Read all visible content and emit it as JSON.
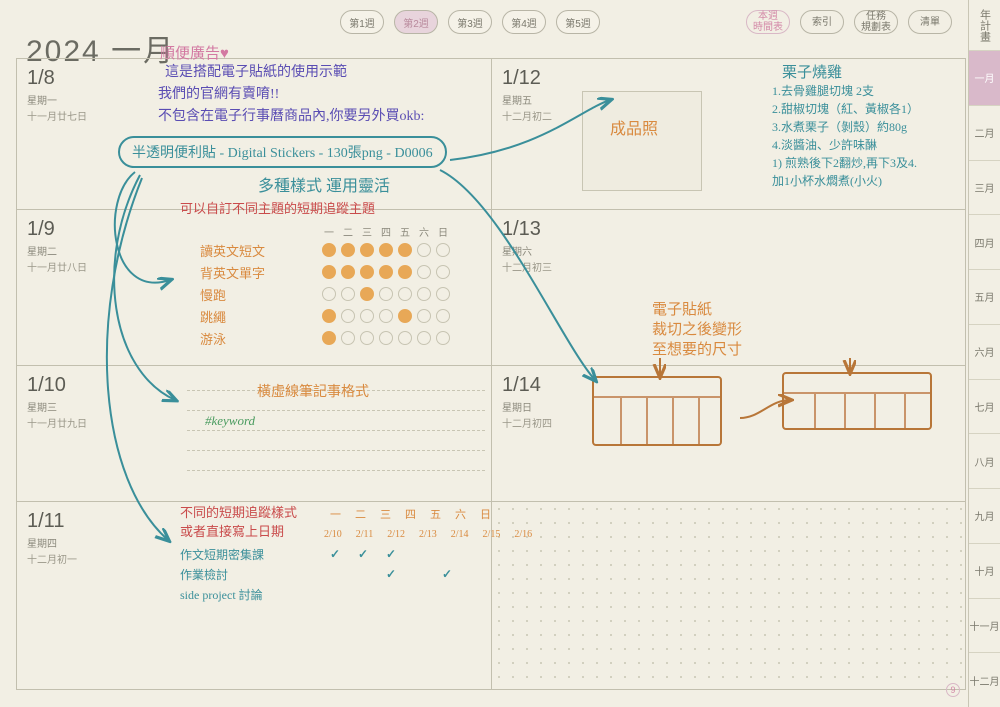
{
  "year_title": "2024 一月",
  "week_tabs": [
    "第1週",
    "第2週",
    "第3週",
    "第4週",
    "第5週"
  ],
  "week_active_index": 1,
  "right_nav": [
    {
      "label": "本週\n時間表",
      "pink": true
    },
    {
      "label": "索引",
      "pink": false
    },
    {
      "label": "任務\n規劃表",
      "pink": false
    },
    {
      "label": "清單",
      "pink": false
    }
  ],
  "month_strip_header": "年計畫",
  "months": [
    "一月",
    "二月",
    "三月",
    "四月",
    "五月",
    "六月",
    "七月",
    "八月",
    "九月",
    "十月",
    "十一月",
    "十二月"
  ],
  "month_active_index": 0,
  "days": {
    "d18": {
      "date": "1/8",
      "weekday": "星期一",
      "lunar": "十一月廿七日"
    },
    "d19": {
      "date": "1/9",
      "weekday": "星期二",
      "lunar": "十一月廿八日"
    },
    "d110": {
      "date": "1/10",
      "weekday": "星期三",
      "lunar": "十一月廿九日"
    },
    "d111": {
      "date": "1/11",
      "weekday": "星期四",
      "lunar": "十二月初一"
    },
    "d112": {
      "date": "1/12",
      "weekday": "星期五",
      "lunar": "十二月初二"
    },
    "d113": {
      "date": "1/13",
      "weekday": "星期六",
      "lunar": "十二月初三"
    },
    "d114": {
      "date": "1/14",
      "weekday": "星期日",
      "lunar": "十二月初四"
    }
  },
  "annotations": {
    "ad_label": "順便廣告♥",
    "intro_lines": [
      "這是搭配電子貼紙的使用示範",
      "我們的官網有賣唷!!",
      "不包含在電子行事曆商品內,你要另外買okb:"
    ],
    "sticker_text": "半透明便利貼 - Digital Stickers - 130張png - D0006",
    "flex_caption": "多種樣式 運用靈活",
    "custom_topic": "可以自訂不同主題的短期追蹤主題",
    "dashed_style": "橫虛線筆記事格式",
    "keyword": "#keyword",
    "variant_heading": "不同的短期追蹤樣式",
    "variant_sub": "或者直接寫上日期",
    "result_photo": "成品照",
    "recipe_title": "栗子燒雞",
    "recipe_lines": [
      "1.去骨雞腿切塊 2支",
      "2.甜椒切塊（紅、黃椒各1）",
      "3.水煮栗子（剝殼）約80g",
      "4.淡醬油、少許味醂",
      "1) 煎熟後下2翻炒,再下3及4.",
      "加1小杯水燜煮(小火)"
    ],
    "sticker_note": [
      "電子貼紙",
      "裁切之後變形",
      "至想要的尺寸"
    ]
  },
  "tracker9": {
    "headers": [
      "一",
      "二",
      "三",
      "四",
      "五",
      "六",
      "日"
    ],
    "rows": [
      {
        "label": "讀英文短文",
        "cells": [
          1,
          1,
          1,
          1,
          1,
          0,
          0
        ]
      },
      {
        "label": "背英文單字",
        "cells": [
          1,
          1,
          1,
          1,
          1,
          0,
          0
        ]
      },
      {
        "label": "慢跑",
        "cells": [
          0,
          0,
          2,
          0,
          0,
          0,
          0
        ]
      },
      {
        "label": "跳繩",
        "cells": [
          1,
          0,
          0,
          0,
          2,
          0,
          0
        ]
      },
      {
        "label": "游泳",
        "cells": [
          1,
          0,
          0,
          0,
          0,
          0,
          0
        ]
      }
    ]
  },
  "tracker11": {
    "headers": [
      "一",
      "二",
      "三",
      "四",
      "五",
      "六",
      "日"
    ],
    "dates": [
      "2/10",
      "2/11",
      "2/12",
      "2/13",
      "2/14",
      "2/15",
      "2/16"
    ],
    "rows": [
      {
        "label": "作文短期密集課",
        "checks": [
          1,
          1,
          1,
          0,
          0,
          0,
          0
        ]
      },
      {
        "label": "作業檢討",
        "checks": [
          0,
          0,
          1,
          0,
          1,
          0,
          0
        ]
      },
      {
        "label": "side project 討論",
        "checks": [
          0,
          0,
          0,
          0,
          0,
          0,
          0
        ]
      }
    ]
  },
  "colors": {
    "bg": "#f2efe4",
    "line": "#c2bfae",
    "teal": "#3a8f9a",
    "purple": "#5a4db3",
    "orange": "#d98a3f",
    "brown": "#b87638",
    "green": "#4a9b5f",
    "red": "#c94b4b",
    "pink": "#d379a2"
  }
}
